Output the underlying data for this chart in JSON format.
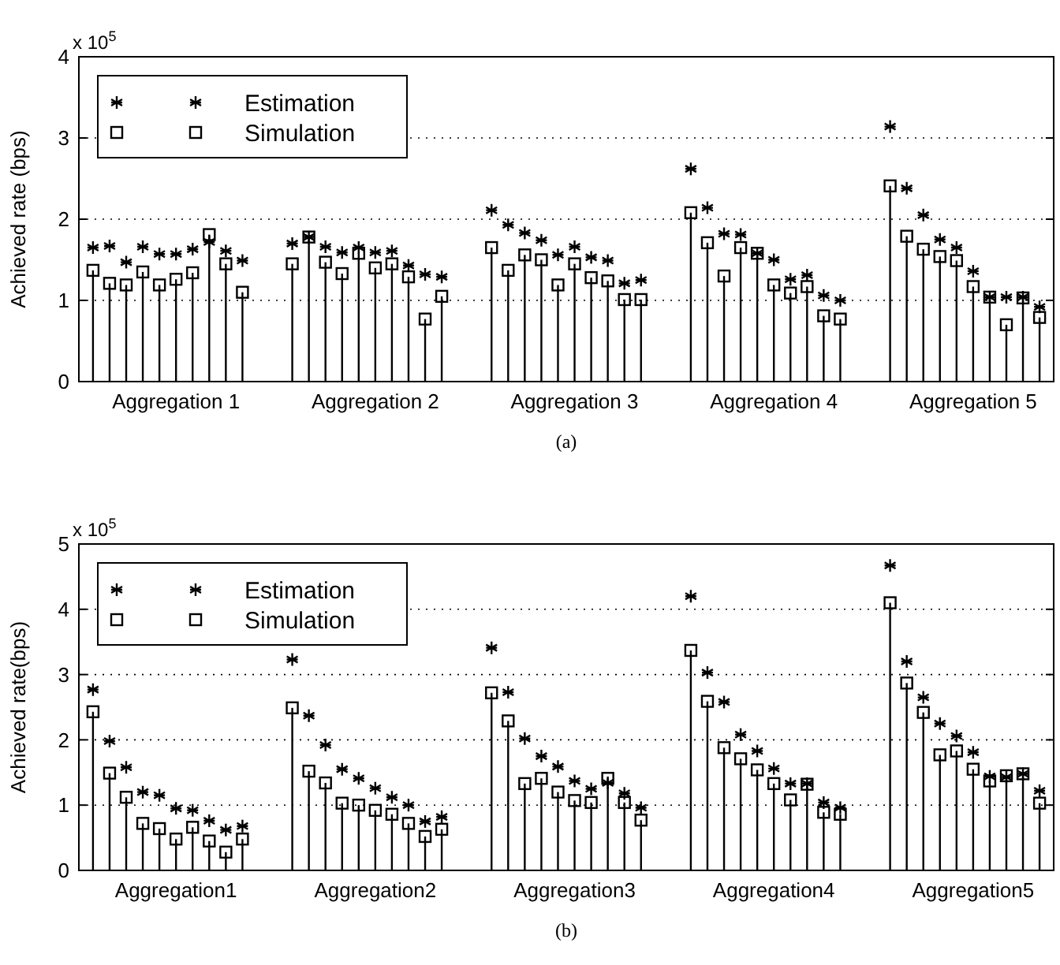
{
  "chart_data": [
    {
      "type": "lollipop",
      "ylabel": "Achieved rate (bps)",
      "annotations": [
        "x 10$^{5}$",
        "(a)"
      ],
      "categories": [
        null,
        null,
        null,
        null,
        null,
        "Aggregation 1",
        null,
        null,
        null,
        null,
        null,
        null,
        null,
        null,
        null,
        null,
        null,
        "Aggregation 2",
        null,
        null,
        null,
        null,
        null,
        null,
        null,
        null,
        null,
        null,
        null,
        "Aggregation 3",
        null,
        null,
        null,
        null,
        null,
        null,
        null,
        null,
        null,
        null,
        null,
        "Aggregation 4",
        null,
        null,
        null,
        null,
        null,
        null,
        null,
        null,
        null,
        null,
        null,
        "Aggregation 5",
        null,
        null,
        null,
        null
      ],
      "ylim": [
        0,
        4
      ],
      "yticks": [
        0,
        1,
        2,
        3,
        4
      ],
      "grid": "y",
      "legend": "top left",
      "series": [
        {
          "name": "Estimation",
          "type": "scatter",
          "marker": "cross",
          "color": "#000000",
          "values": [
            1.65,
            1.67,
            1.47,
            1.66,
            1.57,
            1.57,
            1.63,
            1.72,
            1.61,
            1.49,
            null,
            null,
            1.7,
            1.78,
            1.66,
            1.59,
            1.65,
            1.59,
            1.61,
            1.43,
            1.32,
            1.29,
            null,
            null,
            2.11,
            1.93,
            1.83,
            1.74,
            1.56,
            1.66,
            1.53,
            1.49,
            1.21,
            1.25,
            null,
            null,
            2.62,
            2.14,
            1.82,
            1.81,
            1.58,
            1.5,
            1.26,
            1.31,
            1.06,
            1.0,
            null,
            null,
            3.14,
            2.38,
            2.05,
            1.75,
            1.65,
            1.36,
            1.04,
            1.04,
            1.04,
            0.92
          ]
        },
        {
          "name": "Simulation",
          "marker": "square",
          "color": "#000000",
          "values": [
            1.37,
            1.21,
            1.19,
            1.35,
            1.19,
            1.26,
            1.34,
            1.81,
            1.45,
            1.1,
            null,
            null,
            1.45,
            1.78,
            1.47,
            1.33,
            1.58,
            1.4,
            1.45,
            1.29,
            0.77,
            1.05,
            null,
            null,
            1.65,
            1.37,
            1.56,
            1.5,
            1.19,
            1.45,
            1.28,
            1.24,
            1.01,
            1.01,
            null,
            null,
            2.08,
            1.71,
            1.3,
            1.65,
            1.58,
            1.19,
            1.09,
            1.17,
            0.81,
            0.77,
            null,
            null,
            2.41,
            1.79,
            1.63,
            1.54,
            1.49,
            1.17,
            1.04,
            0.7,
            1.03,
            0.79
          ]
        }
      ]
    },
    {
      "type": "lollipop",
      "ylabel": "Achieved rate(bps)",
      "annotations": [
        "x 10$^{5}$",
        "(b)"
      ],
      "categories": [
        null,
        null,
        null,
        null,
        null,
        "Aggregation1",
        null,
        null,
        null,
        null,
        null,
        null,
        null,
        null,
        null,
        null,
        null,
        "Aggregation2",
        null,
        null,
        null,
        null,
        null,
        null,
        null,
        null,
        null,
        null,
        null,
        "Aggregation3",
        null,
        null,
        null,
        null,
        null,
        null,
        null,
        null,
        null,
        null,
        null,
        "Aggregation4",
        null,
        null,
        null,
        null,
        null,
        null,
        null,
        null,
        null,
        null,
        null,
        "Aggregation5",
        null,
        null,
        null,
        null
      ],
      "ylim": [
        0,
        5
      ],
      "yticks": [
        0,
        1,
        2,
        3,
        4,
        5
      ],
      "grid": "y",
      "legend": "top left",
      "series": [
        {
          "name": "Estimation",
          "type": "scatter",
          "marker": "cross",
          "color": "#000000",
          "values": [
            2.77,
            1.98,
            1.58,
            1.2,
            1.15,
            0.95,
            0.92,
            0.76,
            0.62,
            0.68,
            null,
            null,
            3.23,
            2.37,
            1.92,
            1.55,
            1.41,
            1.26,
            1.12,
            1.0,
            0.75,
            0.82,
            null,
            null,
            3.41,
            2.73,
            2.02,
            1.75,
            1.59,
            1.37,
            1.25,
            1.34,
            1.18,
            0.96,
            null,
            null,
            4.2,
            3.03,
            2.58,
            2.08,
            1.83,
            1.56,
            1.33,
            1.33,
            1.04,
            0.96,
            null,
            null,
            4.67,
            3.2,
            2.65,
            2.25,
            2.06,
            1.81,
            1.44,
            1.43,
            1.48,
            1.22
          ]
        },
        {
          "name": "Simulation",
          "marker": "square",
          "color": "#000000",
          "values": [
            2.43,
            1.49,
            1.12,
            0.72,
            0.64,
            0.48,
            0.66,
            0.45,
            0.28,
            0.48,
            null,
            null,
            2.49,
            1.52,
            1.34,
            1.03,
            1.0,
            0.92,
            0.86,
            0.72,
            0.52,
            0.63,
            null,
            null,
            2.72,
            2.29,
            1.33,
            1.41,
            1.2,
            1.07,
            1.04,
            1.41,
            1.04,
            0.77,
            null,
            null,
            3.37,
            2.59,
            1.88,
            1.71,
            1.54,
            1.33,
            1.08,
            1.32,
            0.89,
            0.86,
            null,
            null,
            4.1,
            2.87,
            2.42,
            1.77,
            1.83,
            1.55,
            1.37,
            1.45,
            1.48,
            1.03
          ]
        }
      ]
    }
  ]
}
